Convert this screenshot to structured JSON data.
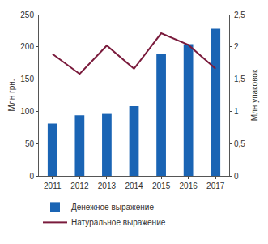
{
  "chart_data": {
    "type": "bar",
    "categories": [
      "2011",
      "2012",
      "2013",
      "2014",
      "2015",
      "2016",
      "2017"
    ],
    "series": [
      {
        "name": "Денежное выражение",
        "type": "bar",
        "color": "#1a64b4",
        "values": [
          81,
          94,
          96,
          108,
          189,
          204,
          228
        ]
      },
      {
        "name": "Натуральное выражение",
        "type": "line",
        "axis": "y2",
        "color": "#7a1b3c",
        "values": [
          1.89,
          1.58,
          2.02,
          1.66,
          2.21,
          2.03,
          1.66
        ]
      }
    ],
    "y_label": "Млн грн.",
    "y2_label": "Млн упаковок",
    "ylim": [
      0,
      250
    ],
    "yticks": [
      0,
      50,
      100,
      150,
      200,
      250
    ],
    "y2lim": [
      0,
      2.5
    ],
    "y2ticks": [
      0,
      {
        "value": 0.5,
        "label": "0,5"
      },
      1,
      {
        "value": 1.5,
        "label": "1,5"
      },
      2,
      {
        "value": 2.5,
        "label": "2,5"
      }
    ],
    "grid": false,
    "legend": "bottom"
  }
}
